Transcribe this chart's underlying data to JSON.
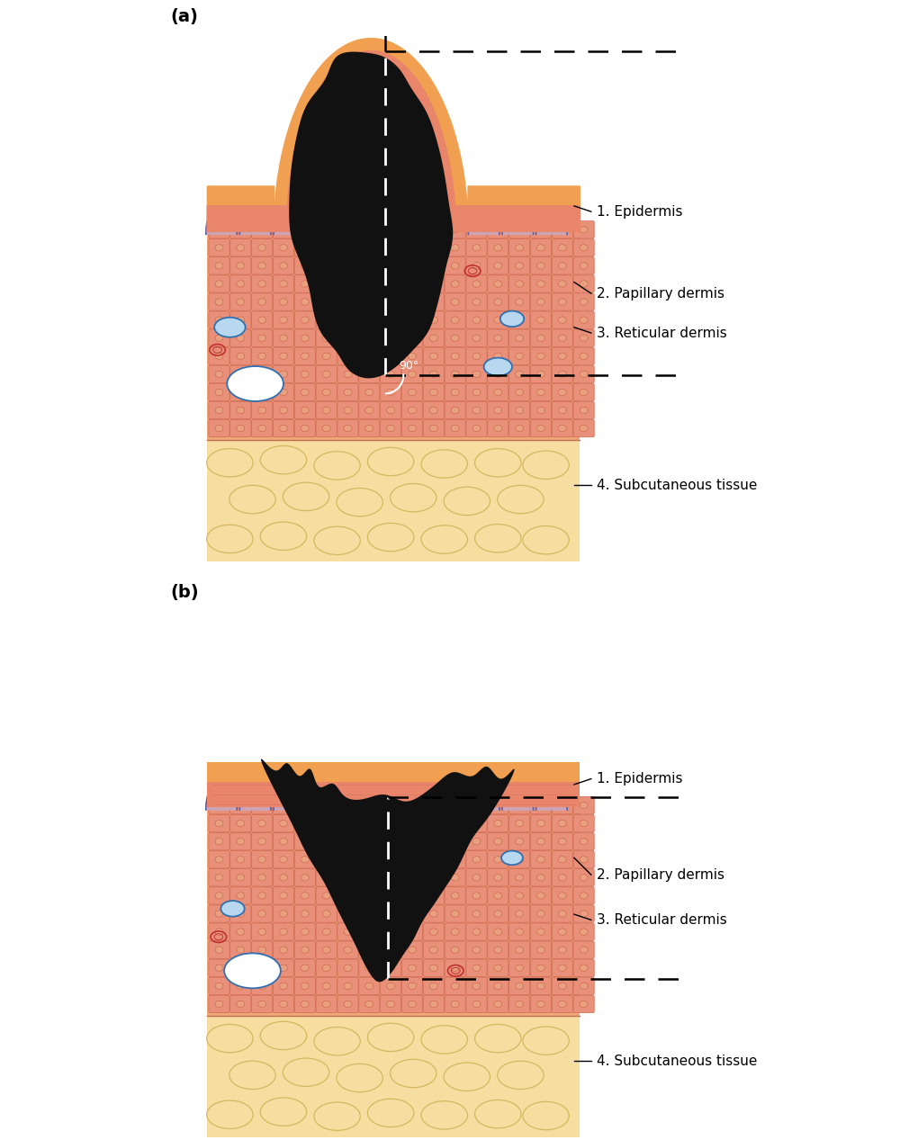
{
  "fig_width": 10.0,
  "fig_height": 12.67,
  "bg_color": "#ffffff",
  "panel_a_label": "(a)",
  "panel_b_label": "(b)",
  "labels": [
    "1. Epidermis",
    "2. Papillary dermis",
    "3. Reticular dermis",
    "4. Subcutaneous tissue"
  ],
  "angle_label": "90°",
  "colors": {
    "subcutaneous_bg": "#f5dea0",
    "subcutaneous_blob": "#f0d490",
    "subcutaneous_blob_border": "#d4b860",
    "dermis_bg": "#f0a878",
    "dermis_cell_fill": "#e8907a",
    "dermis_cell_border": "#d06850",
    "epidermis_thick": "#e8856a",
    "epidermis_outer_orange": "#f0a050",
    "papillary_fill": "#c8a8c0",
    "papillary_border": "#6060a0",
    "tumor": "#111111",
    "vessel_blue_fill": "#b8d8f0",
    "vessel_blue_border": "#3070b0",
    "vessel_white_fill": "#ffffff",
    "vessel_red_border": "#c03030",
    "line_color": "#000000",
    "white_dashed": "#ffffff"
  }
}
